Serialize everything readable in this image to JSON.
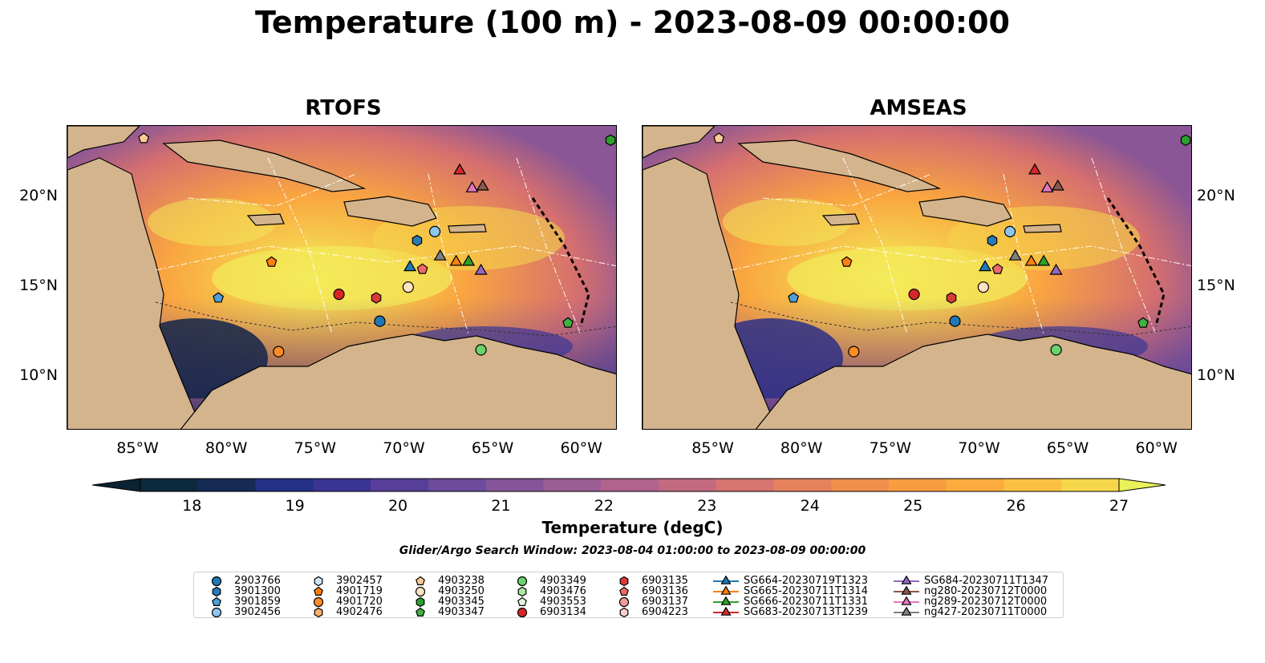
{
  "title": "Temperature (100 m) - 2023-08-09 00:00:00",
  "panels": [
    {
      "title": "RTOFS",
      "left": true
    },
    {
      "title": "AMSEAS",
      "left": false
    }
  ],
  "axes": {
    "lat_ticks": [
      "20°N",
      "15°N",
      "10°N"
    ],
    "lon_ticks": [
      "85°W",
      "80°W",
      "75°W",
      "70°W",
      "65°W",
      "60°W"
    ],
    "lon_range": [
      -89,
      -58
    ],
    "lat_range": [
      7,
      24
    ]
  },
  "colorbar": {
    "label": "Temperature (degC)",
    "ticks": [
      "18",
      "19",
      "20",
      "21",
      "22",
      "23",
      "24",
      "25",
      "26",
      "27"
    ],
    "min": 17.5,
    "max": 27,
    "colors": [
      "#0d2a3d",
      "#152a55",
      "#233086",
      "#3a3494",
      "#563e99",
      "#6d4a9a",
      "#855498",
      "#9b5d94",
      "#b0638c",
      "#c36a80",
      "#d57470",
      "#e5815d",
      "#f18e4b",
      "#f89c40",
      "#fcac3f",
      "#fbc043",
      "#f6d64b"
    ]
  },
  "window_text": "Glider/Argo Search Window: 2023-08-04 01:00:00 to 2023-08-09 00:00:00",
  "legend": [
    {
      "label": "2903766",
      "marker": "circle",
      "color": "#1f77b4"
    },
    {
      "label": "3901300",
      "marker": "hexagon",
      "color": "#2a7ab8"
    },
    {
      "label": "3901859",
      "marker": "pentagon",
      "color": "#4f9fd6"
    },
    {
      "label": "3902456",
      "marker": "circle",
      "color": "#8ec5ee"
    },
    {
      "label": "3902457",
      "marker": "hexagon",
      "color": "#cfe6f8"
    },
    {
      "label": "4901719",
      "marker": "pentagon",
      "color": "#ff7f0e"
    },
    {
      "label": "4901720",
      "marker": "circle",
      "color": "#ff8c26"
    },
    {
      "label": "4902476",
      "marker": "hexagon",
      "color": "#ffb065"
    },
    {
      "label": "4903238",
      "marker": "pentagon",
      "color": "#ffc997"
    },
    {
      "label": "4903250",
      "marker": "circle",
      "color": "#ffe2c4"
    },
    {
      "label": "4903345",
      "marker": "hexagon",
      "color": "#2ca02c"
    },
    {
      "label": "4903347",
      "marker": "pentagon",
      "color": "#3fb23f"
    },
    {
      "label": "4903349",
      "marker": "circle",
      "color": "#6bd36b"
    },
    {
      "label": "4903476",
      "marker": "hexagon",
      "color": "#a9e8a4"
    },
    {
      "label": "4903553",
      "marker": "pentagon",
      "color": "#e0f6dc"
    },
    {
      "label": "6903134",
      "marker": "circle",
      "color": "#d62728"
    },
    {
      "label": "6903135",
      "marker": "hexagon",
      "color": "#db3a3b"
    },
    {
      "label": "6903136",
      "marker": "pentagon",
      "color": "#ee6a6a"
    },
    {
      "label": "6903137",
      "marker": "circle",
      "color": "#f59a9a"
    },
    {
      "label": "6904223",
      "marker": "hexagon",
      "color": "#fbcccc"
    },
    {
      "label": "SG664-20230719T1323",
      "marker": "triangle",
      "color": "#1f77b4"
    },
    {
      "label": "SG665-20230711T1314",
      "marker": "triangle",
      "color": "#ff7f0e"
    },
    {
      "label": "SG666-20230711T1331",
      "marker": "triangle",
      "color": "#2ca02c"
    },
    {
      "label": "SG683-20230713T1239",
      "marker": "triangle",
      "color": "#d62728"
    },
    {
      "label": "SG684-20230711T1347",
      "marker": "triangle",
      "color": "#9467bd"
    },
    {
      "label": "ng280-20230712T0000",
      "marker": "triangle",
      "color": "#8c564b"
    },
    {
      "label": "ng289-20230712T0000",
      "marker": "triangle",
      "color": "#e377c2"
    },
    {
      "label": "ng427-20230711T0000",
      "marker": "triangle",
      "color": "#7f7f7f"
    }
  ],
  "floats": [
    {
      "id": "2903766",
      "lon": -71.4,
      "lat": 13.1
    },
    {
      "id": "3901300",
      "lon": -69.3,
      "lat": 17.6
    },
    {
      "id": "3901859",
      "lon": -80.5,
      "lat": 14.4
    },
    {
      "id": "3902456",
      "lon": -68.3,
      "lat": 18.1
    },
    {
      "id": "4901719",
      "lon": -77.5,
      "lat": 16.4
    },
    {
      "id": "4901720",
      "lon": -77.1,
      "lat": 11.4
    },
    {
      "id": "4903238",
      "lon": -84.7,
      "lat": 23.3
    },
    {
      "id": "4903250",
      "lon": -69.8,
      "lat": 15.0
    },
    {
      "id": "4903345",
      "lon": -58.4,
      "lat": 23.2
    },
    {
      "id": "4903347",
      "lon": -60.8,
      "lat": 13.0
    },
    {
      "id": "4903349",
      "lon": -65.7,
      "lat": 11.5
    },
    {
      "id": "6903134",
      "lon": -73.7,
      "lat": 14.6
    },
    {
      "id": "6903135",
      "lon": -71.6,
      "lat": 14.4
    },
    {
      "id": "6903136",
      "lon": -69.0,
      "lat": 16.0
    }
  ],
  "gliders": [
    {
      "id": "SG664-20230719T1323",
      "lon": -69.7,
      "lat": 16.1
    },
    {
      "id": "SG665-20230711T1314",
      "lon": -67.1,
      "lat": 16.4
    },
    {
      "id": "SG666-20230711T1331",
      "lon": -66.4,
      "lat": 16.4
    },
    {
      "id": "SG683-20230713T1239",
      "lon": -66.9,
      "lat": 21.5
    },
    {
      "id": "SG684-20230711T1347",
      "lon": -65.7,
      "lat": 15.9
    },
    {
      "id": "ng280-20230712T0000",
      "lon": -65.6,
      "lat": 20.6
    },
    {
      "id": "ng289-20230712T0000",
      "lon": -66.2,
      "lat": 20.5
    },
    {
      "id": "ng427-20230711T0000",
      "lon": -68.0,
      "lat": 16.7
    }
  ]
}
